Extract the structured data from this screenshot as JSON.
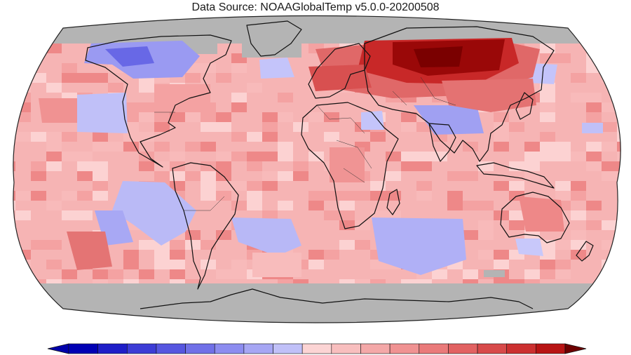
{
  "title": "Data Source: NOAAGlobalTemp v5.0.0-20200508",
  "colors": {
    "missing": "#b4b4b4",
    "land_outline": "#111111",
    "cold_scale": [
      "#0a0ab4",
      "#2828cc",
      "#4646dc",
      "#6262e6",
      "#7e7eee",
      "#9a9af2",
      "#b2b2f6",
      "#c8c8fa"
    ],
    "warm_scale": [
      "#fcd2d2",
      "#f8baba",
      "#f4a2a2",
      "#ee8888",
      "#e66c6c",
      "#dc5050",
      "#d03434",
      "#c21c1c",
      "#a80c0c",
      "#7a0000"
    ]
  },
  "colorbar": {
    "bins": [
      "#0000b4",
      "#1e1ec8",
      "#3c3cd6",
      "#5656e0",
      "#7070e8",
      "#8c8cf0",
      "#a6a6f4",
      "#c0c0f8",
      "#fcd4d4",
      "#f8bebe",
      "#f4a8a8",
      "#f09292",
      "#ea7a7a",
      "#e26262",
      "#d84a4a",
      "#cc3030",
      "#b81414"
    ],
    "low_end": "#0000aa",
    "high_end": "#6e0000"
  }
}
